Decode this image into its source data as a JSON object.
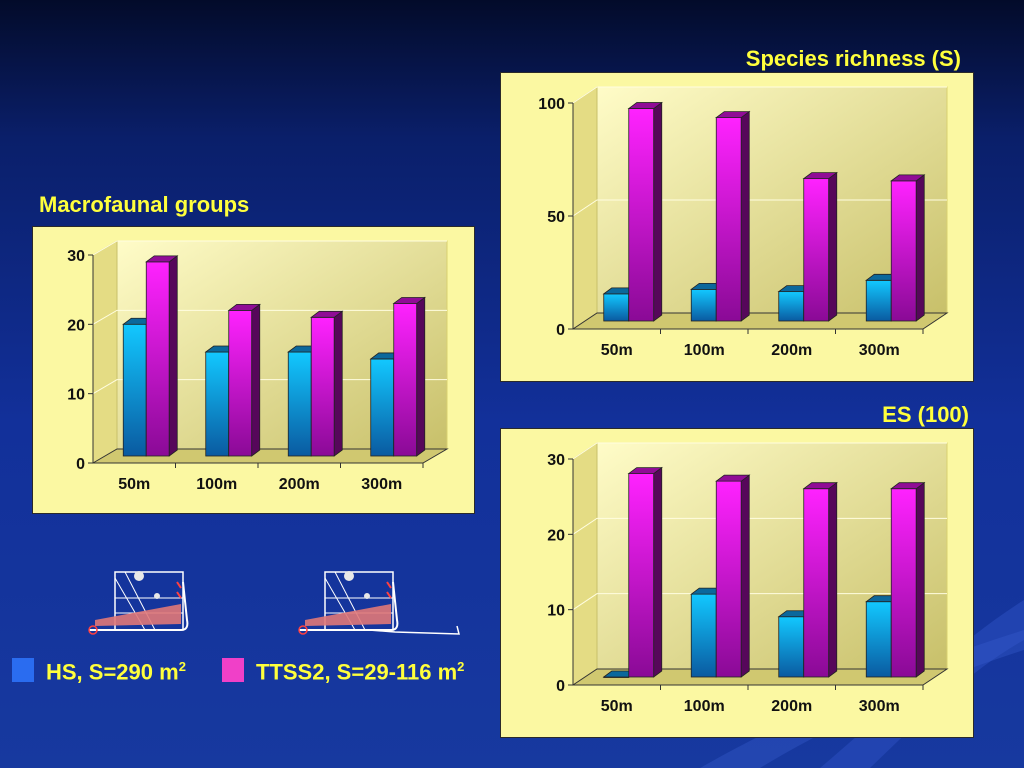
{
  "colors": {
    "hs": "#1a9ee8",
    "ttss2": "#d21ad8",
    "title": "#ffff3c",
    "panel_bg": "#fbf8a2",
    "legend_hs": "#2a6cf0",
    "legend_ttss2": "#f040c8"
  },
  "legend": {
    "hs_label": "HS, S=290 m",
    "hs_sup": "2",
    "ttss2_label": "TTSS2, S=29-116 m",
    "ttss2_sup": "2"
  },
  "icons": [
    "hs-sampler-sled-icon",
    "ttss2-sampler-sled-icon"
  ],
  "chart_data": [
    {
      "type": "bar",
      "title": "Macrofaunal groups",
      "categories": [
        "50m",
        "100m",
        "200m",
        "300m"
      ],
      "series": [
        {
          "name": "HS, S=290 m2",
          "values": [
            19,
            15,
            15,
            14
          ]
        },
        {
          "name": "TTSS2, S=29-116 m2",
          "values": [
            28,
            21,
            20,
            22
          ]
        }
      ],
      "ylim": [
        0,
        30
      ],
      "yticks": [
        "0",
        "10",
        "20",
        "30"
      ],
      "grid": true
    },
    {
      "type": "bar",
      "title": "Species richness (S)",
      "categories": [
        "50m",
        "100m",
        "200m",
        "300m"
      ],
      "series": [
        {
          "name": "HS, S=290 m2",
          "values": [
            12,
            14,
            13,
            18
          ]
        },
        {
          "name": "TTSS2, S=29-116 m2",
          "values": [
            94,
            90,
            63,
            62
          ]
        }
      ],
      "ylim": [
        0,
        100
      ],
      "yticks": [
        "0",
        "50",
        "100"
      ],
      "grid": true
    },
    {
      "type": "bar",
      "title": "ES (100)",
      "categories": [
        "50m",
        "100m",
        "200m",
        "300m"
      ],
      "series": [
        {
          "name": "HS, S=290 m2",
          "values": [
            0,
            11,
            8,
            10
          ]
        },
        {
          "name": "TTSS2, S=29-116 m2",
          "values": [
            27,
            26,
            25,
            25
          ]
        }
      ],
      "ylim": [
        0,
        30
      ],
      "yticks": [
        "0",
        "10",
        "20",
        "30"
      ],
      "grid": true
    }
  ]
}
